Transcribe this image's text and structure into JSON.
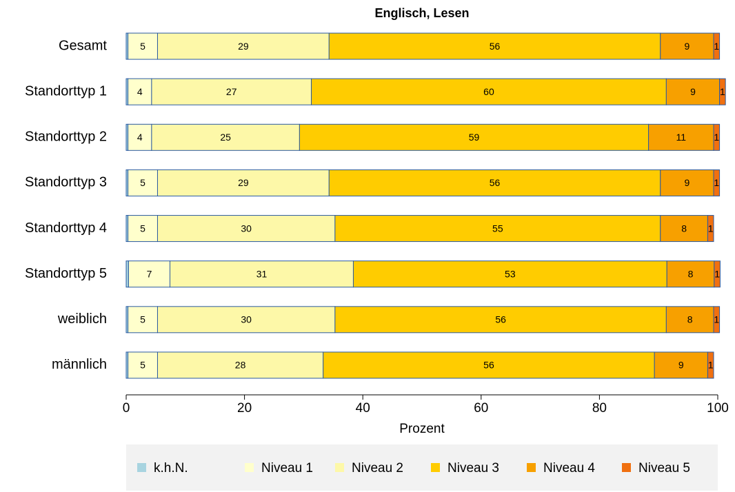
{
  "chart_data": {
    "type": "stacked_bar_horizontal",
    "title": "Englisch, Lesen",
    "xlabel": "Prozent",
    "categories": [
      "Gesamt",
      "Standorttyp 1",
      "Standorttyp 2",
      "Standorttyp 3",
      "Standorttyp 4",
      "Standorttyp 5",
      "weiblich",
      "männlich"
    ],
    "series": [
      {
        "name": "k.h.N.",
        "color": "#a8d4e0",
        "show_labels": false,
        "values": [
          0.3,
          0.3,
          0.3,
          0.3,
          0.3,
          0.4,
          0.3,
          0.3
        ]
      },
      {
        "name": "Niveau 1",
        "color": "#ffffcc",
        "show_labels": true,
        "values": [
          5,
          4,
          4,
          5,
          5,
          7,
          5,
          5
        ]
      },
      {
        "name": "Niveau 2",
        "color": "#fdf8a8",
        "show_labels": true,
        "values": [
          29,
          27,
          25,
          29,
          30,
          31,
          30,
          28
        ]
      },
      {
        "name": "Niveau 3",
        "color": "#ffcc00",
        "show_labels": true,
        "values": [
          56,
          60,
          59,
          56,
          55,
          53,
          56,
          56
        ]
      },
      {
        "name": "Niveau 4",
        "color": "#f7a000",
        "show_labels": true,
        "values": [
          9,
          9,
          11,
          9,
          8,
          8,
          8,
          9
        ]
      },
      {
        "name": "Niveau 5",
        "color": "#f07010",
        "show_labels": true,
        "values": [
          1,
          1,
          1,
          1,
          1,
          1,
          1,
          1
        ]
      }
    ],
    "xlim": [
      0,
      100
    ],
    "xticks": [
      0,
      20,
      40,
      60,
      80,
      100
    ],
    "legend": "bottom"
  }
}
